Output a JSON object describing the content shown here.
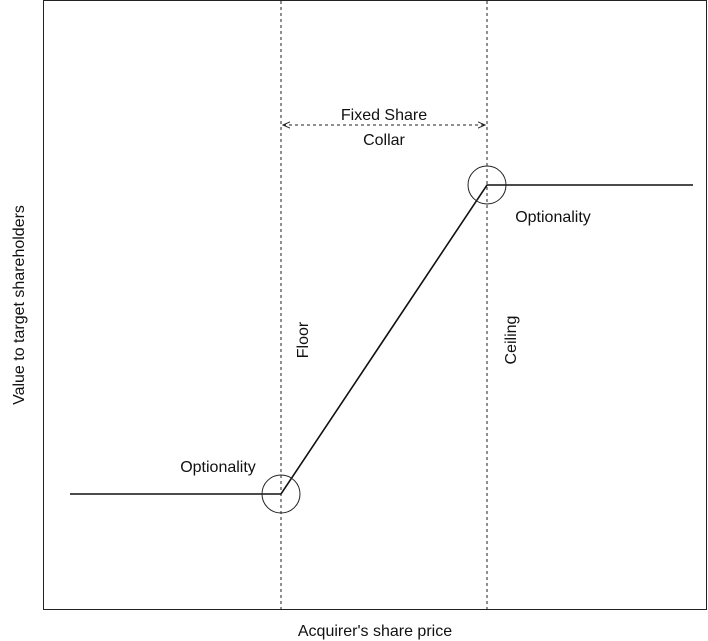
{
  "axes": {
    "x_label": "Acquirer's share price",
    "y_label": "Value to target shareholders"
  },
  "collar": {
    "line1": "Fixed Share",
    "line2": "Collar"
  },
  "boundaries": {
    "floor": "Floor",
    "ceiling": "Ceiling"
  },
  "optionality": {
    "lower": "Optionality",
    "upper": "Optionality"
  }
}
